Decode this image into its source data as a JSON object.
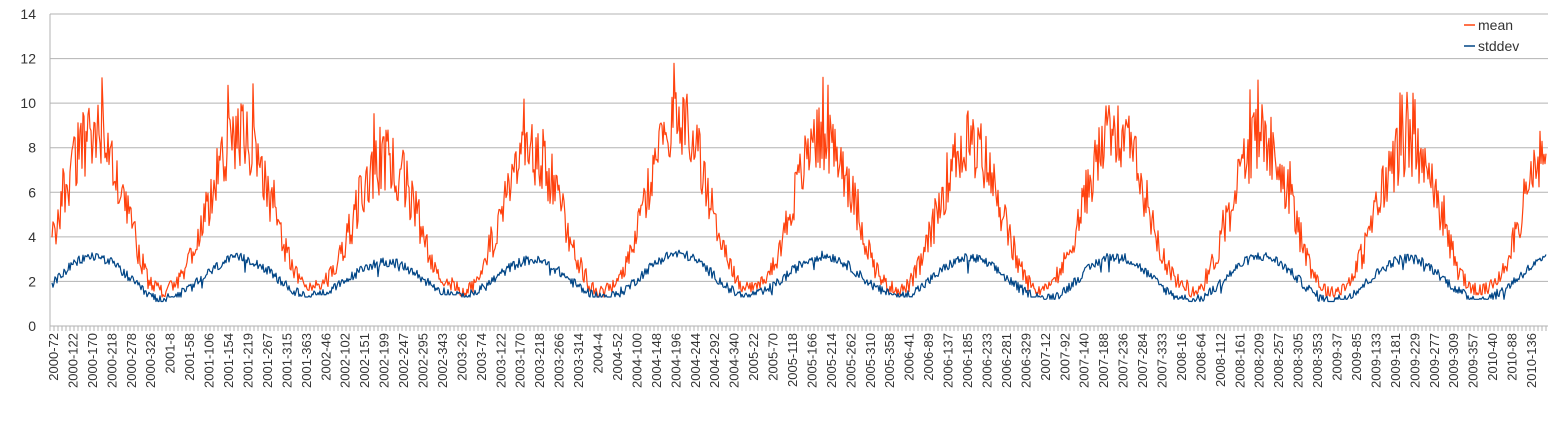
{
  "chart_data": {
    "type": "line",
    "title": "",
    "xlabel": "",
    "ylabel": "",
    "ylim": [
      0,
      14
    ],
    "yticks": [
      0,
      2,
      4,
      6,
      8,
      10,
      12,
      14
    ],
    "xtick_labels": [
      "2000-72",
      "2000-122",
      "2000-170",
      "2000-218",
      "2000-278",
      "2000-326",
      "2001-8",
      "2001-58",
      "2001-106",
      "2001-154",
      "2001-219",
      "2001-267",
      "2001-315",
      "2001-363",
      "2002-46",
      "2002-102",
      "2002-151",
      "2002-199",
      "2002-247",
      "2002-295",
      "2002-343",
      "2003-26",
      "2003-74",
      "2003-122",
      "2003-170",
      "2003-218",
      "2003-266",
      "2003-314",
      "2004-4",
      "2004-52",
      "2004-100",
      "2004-148",
      "2004-196",
      "2004-244",
      "2004-292",
      "2004-340",
      "2005-22",
      "2005-70",
      "2005-118",
      "2005-166",
      "2005-214",
      "2005-262",
      "2005-310",
      "2005-358",
      "2006-41",
      "2006-89",
      "2006-137",
      "2006-185",
      "2006-233",
      "2006-281",
      "2006-329",
      "2007-12",
      "2007-92",
      "2007-140",
      "2007-188",
      "2007-236",
      "2007-284",
      "2007-333",
      "2008-16",
      "2008-64",
      "2008-112",
      "2008-161",
      "2008-209",
      "2008-257",
      "2008-305",
      "2008-353",
      "2009-37",
      "2009-85",
      "2009-133",
      "2009-181",
      "2009-229",
      "2009-277",
      "2009-309",
      "2009-357",
      "2010-40",
      "2010-88",
      "2010-136"
    ],
    "grid": "horizontal",
    "legend": "top-right",
    "series": [
      {
        "name": "mean",
        "color": "#ff420e",
        "peaks": [
          11.7,
          11.0,
          9.7,
          10.3,
          12.2,
          11.2,
          10.8,
          11.4,
          11.1,
          10.6
        ],
        "troughs": [
          1.5,
          1.8,
          1.8,
          1.5,
          1.7,
          1.7,
          1.6,
          1.8,
          1.5,
          1.6
        ]
      },
      {
        "name": "stddev",
        "color": "#004586",
        "peaks": [
          3.3,
          3.2,
          3.0,
          3.1,
          3.4,
          3.3,
          3.2,
          3.3,
          3.3,
          3.2
        ],
        "troughs": [
          1.1,
          1.3,
          1.4,
          1.3,
          1.3,
          1.4,
          1.3,
          1.2,
          1.1,
          1.2
        ]
      }
    ]
  }
}
